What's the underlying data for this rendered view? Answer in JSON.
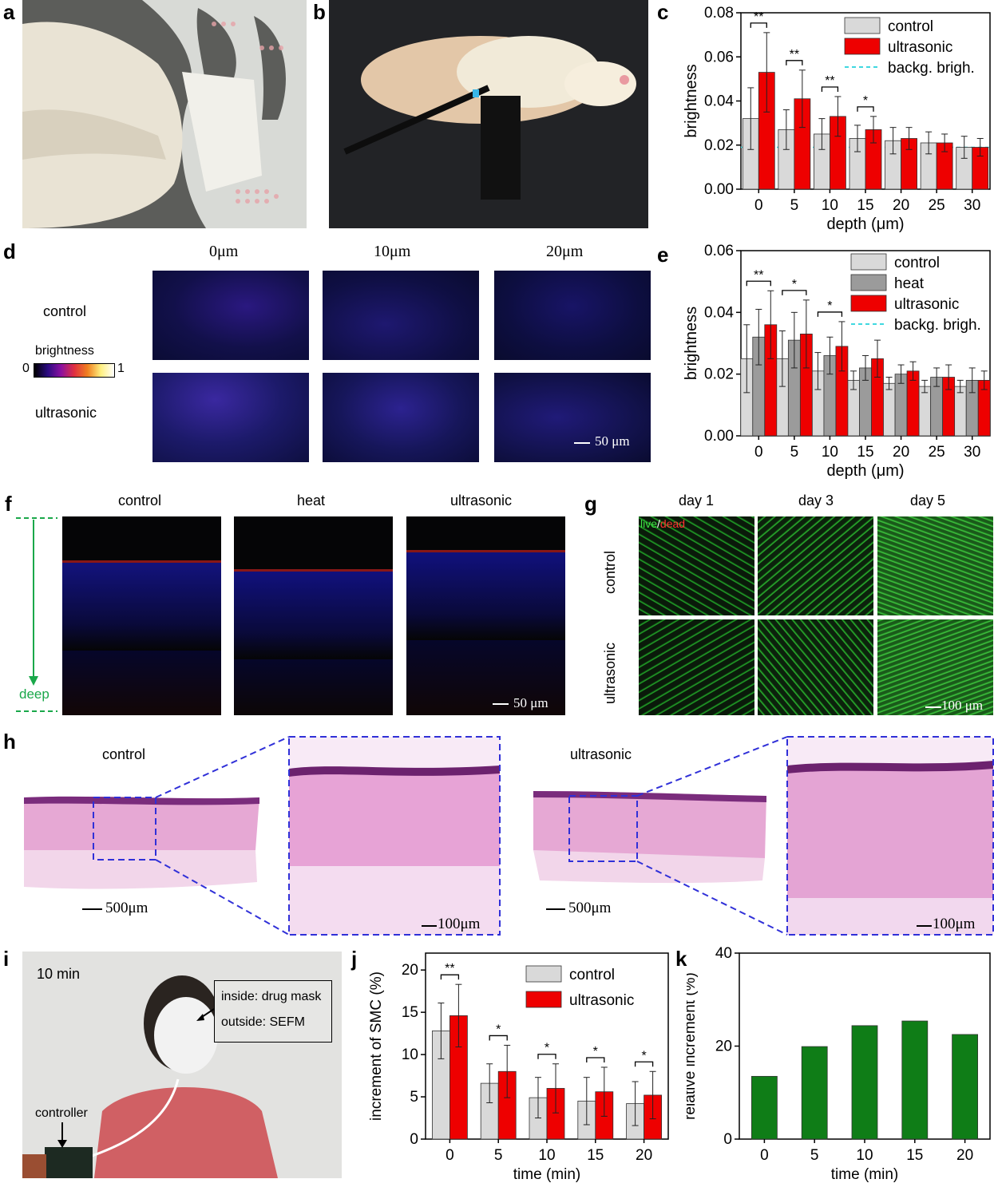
{
  "panels": {
    "a": {
      "letter": "a"
    },
    "b": {
      "letter": "b"
    },
    "c": {
      "letter": "c"
    },
    "d": {
      "letter": "d",
      "col_labels": [
        "0μm",
        "10μm",
        "20μm"
      ],
      "row_labels": [
        "control",
        "ultrasonic"
      ],
      "colorbar": {
        "title": "brightness",
        "min": "0",
        "max": "1"
      },
      "scale": "50 μm"
    },
    "e": {
      "letter": "e"
    },
    "f": {
      "letter": "f",
      "col_labels": [
        "control",
        "heat",
        "ultrasonic"
      ],
      "arrow_label": "deep",
      "scale": "50 μm"
    },
    "g": {
      "letter": "g",
      "col_labels": [
        "day 1",
        "day 3",
        "day 5"
      ],
      "row_labels": [
        "control",
        "ultrasonic"
      ],
      "legend_live": "live",
      "legend_sep": "/",
      "legend_dead": "dead",
      "scale": "100 μm"
    },
    "h": {
      "letter": "h",
      "labels": [
        "control",
        "ultrasonic"
      ],
      "scale_big": "500μm",
      "scale_small": "100μm"
    },
    "i": {
      "letter": "i",
      "time": "10 min",
      "callout_line1": "inside: drug mask",
      "callout_line2": "outside: SEFM",
      "controller": "controller"
    },
    "j": {
      "letter": "j"
    },
    "k": {
      "letter": "k"
    }
  },
  "colors": {
    "control": "#d9d9d9",
    "heat": "#9b9b9b",
    "ultrasonic": "#ee0000",
    "green_bar": "#0f7d17",
    "background_line": "#40d8e0",
    "dashed_blue": "#3030d8"
  },
  "chart_data": [
    {
      "id": "c",
      "type": "bar",
      "xlabel": "depth (μm)",
      "ylabel": "brightness",
      "categories": [
        "0",
        "5",
        "10",
        "15",
        "20",
        "25",
        "30"
      ],
      "ylim": [
        0,
        0.08
      ],
      "yticks": [
        "0.00",
        "0.02",
        "0.04",
        "0.06",
        "0.08"
      ],
      "series": [
        {
          "name": "control",
          "color": "#d9d9d9",
          "values": [
            0.032,
            0.027,
            0.025,
            0.023,
            0.022,
            0.021,
            0.019
          ],
          "errors": [
            0.014,
            0.009,
            0.007,
            0.006,
            0.006,
            0.005,
            0.005
          ]
        },
        {
          "name": "ultrasonic",
          "color": "#ee0000",
          "values": [
            0.053,
            0.041,
            0.033,
            0.027,
            0.023,
            0.021,
            0.019
          ],
          "errors": [
            0.018,
            0.013,
            0.009,
            0.006,
            0.005,
            0.004,
            0.004
          ]
        }
      ],
      "reference_line": {
        "name": "backg. brigh.",
        "value": 0.019
      },
      "significance": [
        "**",
        "**",
        "**",
        "*"
      ],
      "legend": "top-right"
    },
    {
      "id": "e",
      "type": "bar",
      "xlabel": "depth (μm)",
      "ylabel": "brightness",
      "categories": [
        "0",
        "5",
        "10",
        "15",
        "20",
        "25",
        "30"
      ],
      "ylim": [
        0,
        0.06
      ],
      "yticks": [
        "0.00",
        "0.02",
        "0.04",
        "0.06"
      ],
      "series": [
        {
          "name": "control",
          "color": "#d9d9d9",
          "values": [
            0.025,
            0.025,
            0.021,
            0.018,
            0.017,
            0.016,
            0.016
          ],
          "errors": [
            0.011,
            0.009,
            0.006,
            0.003,
            0.002,
            0.002,
            0.002
          ]
        },
        {
          "name": "heat",
          "color": "#9b9b9b",
          "values": [
            0.032,
            0.031,
            0.026,
            0.022,
            0.02,
            0.019,
            0.018
          ],
          "errors": [
            0.009,
            0.009,
            0.006,
            0.004,
            0.003,
            0.003,
            0.004
          ]
        },
        {
          "name": "ultrasonic",
          "color": "#ee0000",
          "values": [
            0.036,
            0.033,
            0.029,
            0.025,
            0.021,
            0.019,
            0.018
          ],
          "errors": [
            0.011,
            0.011,
            0.008,
            0.006,
            0.003,
            0.004,
            0.003
          ]
        }
      ],
      "reference_line": {
        "name": "backg. brigh.",
        "value": 0.015
      },
      "significance": [
        "**",
        "*",
        "*"
      ],
      "legend": "top-right"
    },
    {
      "id": "j",
      "type": "bar",
      "xlabel": "time (min)",
      "ylabel": "increment of SMC (%)",
      "categories": [
        "0",
        "5",
        "10",
        "15",
        "20"
      ],
      "ylim": [
        0,
        22
      ],
      "yticks": [
        "0",
        "5",
        "10",
        "15",
        "20"
      ],
      "series": [
        {
          "name": "control",
          "color": "#d9d9d9",
          "values": [
            12.8,
            6.6,
            4.9,
            4.5,
            4.2
          ],
          "errors": [
            3.3,
            2.3,
            2.4,
            2.8,
            2.6
          ]
        },
        {
          "name": "ultrasonic",
          "color": "#ee0000",
          "values": [
            14.6,
            8.0,
            6.0,
            5.6,
            5.2
          ],
          "errors": [
            3.7,
            3.1,
            2.9,
            2.9,
            2.8
          ]
        }
      ],
      "significance": [
        "**",
        "*",
        "*",
        "*",
        "*"
      ],
      "legend": "top-right"
    },
    {
      "id": "k",
      "type": "bar",
      "xlabel": "time (min)",
      "ylabel": "relative increment (%)",
      "categories": [
        "0",
        "5",
        "10",
        "15",
        "20"
      ],
      "ylim": [
        0,
        40
      ],
      "yticks": [
        "0",
        "20",
        "40"
      ],
      "series": [
        {
          "color": "#0f7d17",
          "values": [
            13.5,
            19.9,
            24.4,
            25.4,
            22.5
          ]
        }
      ]
    }
  ]
}
